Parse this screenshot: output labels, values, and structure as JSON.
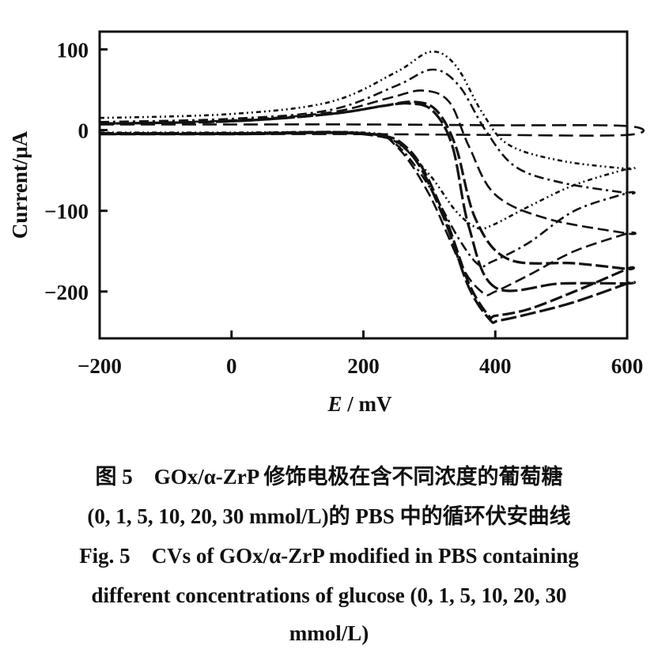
{
  "chart_data": {
    "type": "line",
    "title": "",
    "xlabel": "E / mV",
    "xlabel_italic": "E",
    "xlabel_unit": " / mV",
    "ylabel": "Current/μA",
    "xlim": [
      -200,
      600
    ],
    "ylim": [
      -258,
      122
    ],
    "xticks": [
      -200,
      0,
      200,
      400,
      600
    ],
    "yticks": [
      100,
      0,
      -100,
      -200
    ],
    "xtick_labels": [
      "−200",
      "0",
      "200",
      "400",
      "600"
    ],
    "ytick_labels": [
      "100",
      "0",
      "−100",
      "−200"
    ],
    "grid": false,
    "legend": "none",
    "series": [
      {
        "name": "0 mmol/L",
        "dash": "18 8",
        "points": [
          [
            -200,
            7
          ],
          [
            0,
            7
          ],
          [
            200,
            7
          ],
          [
            400,
            6
          ],
          [
            600,
            5
          ],
          [
            600,
            -6
          ],
          [
            400,
            -6
          ],
          [
            200,
            -5
          ],
          [
            0,
            -5
          ],
          [
            -200,
            -5
          ]
        ]
      },
      {
        "name": "1 mmol/L",
        "dash": "6 4 2 4 2 4",
        "points": [
          [
            -200,
            15
          ],
          [
            0,
            20
          ],
          [
            150,
            35
          ],
          [
            250,
            72
          ],
          [
            302,
            97
          ],
          [
            340,
            80
          ],
          [
            380,
            22
          ],
          [
            420,
            -18
          ],
          [
            500,
            -38
          ],
          [
            600,
            -48
          ],
          [
            600,
            -48
          ],
          [
            520,
            -68
          ],
          [
            450,
            -95
          ],
          [
            395,
            -118
          ],
          [
            372,
            -121
          ],
          [
            340,
            -100
          ],
          [
            300,
            -55
          ],
          [
            250,
            -15
          ],
          [
            200,
            -3
          ],
          [
            0,
            -3
          ],
          [
            -200,
            -3
          ]
        ]
      },
      {
        "name": "5 mmol/L",
        "dash": "12 5 3 5",
        "points": [
          [
            -200,
            10
          ],
          [
            0,
            14
          ],
          [
            150,
            25
          ],
          [
            250,
            55
          ],
          [
            305,
            75
          ],
          [
            345,
            55
          ],
          [
            385,
            0
          ],
          [
            430,
            -45
          ],
          [
            500,
            -65
          ],
          [
            600,
            -78
          ],
          [
            600,
            -78
          ],
          [
            520,
            -100
          ],
          [
            450,
            -140
          ],
          [
            395,
            -163
          ],
          [
            375,
            -167
          ],
          [
            345,
            -135
          ],
          [
            300,
            -70
          ],
          [
            250,
            -18
          ],
          [
            200,
            -4
          ],
          [
            0,
            -4
          ],
          [
            -200,
            -4
          ]
        ]
      },
      {
        "name": "10 mmol/L",
        "dash": "14 6",
        "points": [
          [
            -200,
            8
          ],
          [
            0,
            12
          ],
          [
            150,
            22
          ],
          [
            240,
            40
          ],
          [
            290,
            49
          ],
          [
            330,
            35
          ],
          [
            360,
            -20
          ],
          [
            400,
            -80
          ],
          [
            480,
            -110
          ],
          [
            600,
            -128
          ],
          [
            600,
            -128
          ],
          [
            520,
            -150
          ],
          [
            450,
            -180
          ],
          [
            400,
            -200
          ],
          [
            382,
            -202
          ],
          [
            350,
            -170
          ],
          [
            300,
            -80
          ],
          [
            250,
            -20
          ],
          [
            200,
            -4
          ],
          [
            0,
            -4
          ],
          [
            -200,
            -4
          ]
        ]
      },
      {
        "name": "20 mmol/L",
        "dash": "16 5",
        "points": [
          [
            -200,
            8
          ],
          [
            0,
            11
          ],
          [
            150,
            20
          ],
          [
            230,
            30
          ],
          [
            275,
            35
          ],
          [
            310,
            25
          ],
          [
            340,
            -20
          ],
          [
            370,
            -110
          ],
          [
            420,
            -160
          ],
          [
            520,
            -165
          ],
          [
            600,
            -172
          ],
          [
            600,
            -172
          ],
          [
            520,
            -200
          ],
          [
            450,
            -222
          ],
          [
            400,
            -230
          ],
          [
            390,
            -230
          ],
          [
            360,
            -190
          ],
          [
            320,
            -100
          ],
          [
            270,
            -25
          ],
          [
            200,
            -4
          ],
          [
            0,
            -4
          ],
          [
            -200,
            -4
          ]
        ]
      },
      {
        "name": "30 mmol/L",
        "dash": "20 5",
        "points": [
          [
            -200,
            8
          ],
          [
            0,
            11
          ],
          [
            150,
            20
          ],
          [
            230,
            30
          ],
          [
            270,
            33
          ],
          [
            305,
            24
          ],
          [
            335,
            -20
          ],
          [
            360,
            -120
          ],
          [
            400,
            -195
          ],
          [
            500,
            -190
          ],
          [
            600,
            -190
          ],
          [
            600,
            -190
          ],
          [
            520,
            -213
          ],
          [
            450,
            -228
          ],
          [
            405,
            -236
          ],
          [
            392,
            -235
          ],
          [
            360,
            -195
          ],
          [
            320,
            -105
          ],
          [
            270,
            -28
          ],
          [
            200,
            -5
          ],
          [
            0,
            -5
          ],
          [
            -200,
            -5
          ]
        ]
      }
    ]
  },
  "caption": {
    "zh_line1": "图 5　GOx/α-ZrP 修饰电极在含不同浓度的葡萄糖",
    "zh_line2": "(0, 1, 5, 10, 20, 30 mmol/L)的 PBS 中的循环伏安曲线",
    "en_line1": "Fig. 5　CVs of GOx/α-ZrP modified in PBS containing",
    "en_line2": "different concentrations of glucose (0, 1, 5, 10, 20, 30",
    "en_line3": "mmol/L)"
  }
}
